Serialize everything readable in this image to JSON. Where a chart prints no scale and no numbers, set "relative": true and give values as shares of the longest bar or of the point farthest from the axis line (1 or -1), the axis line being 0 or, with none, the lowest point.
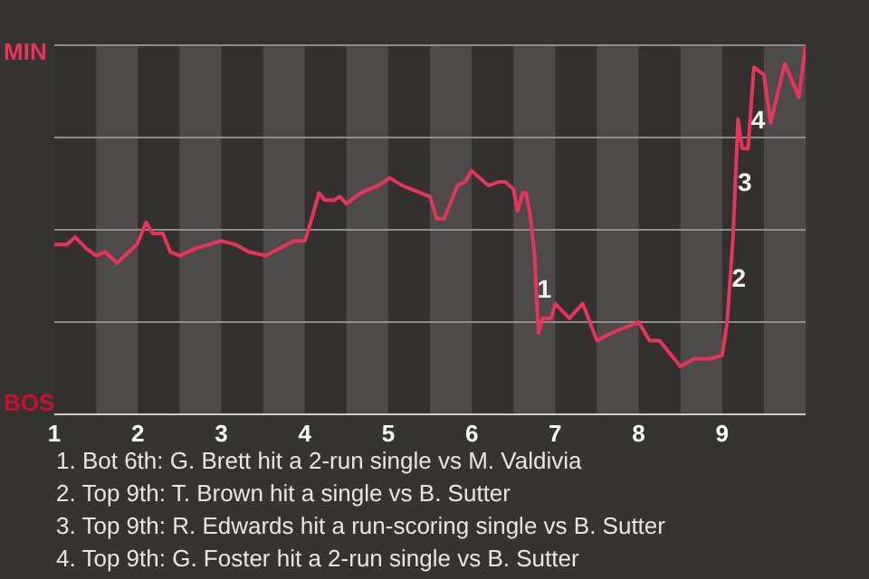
{
  "chart_data": {
    "type": "line",
    "relative": true,
    "grid": "y",
    "legend": false,
    "marker": "none",
    "line_style": "solid",
    "xlim": [
      1,
      10
    ],
    "xticks": [
      1,
      2,
      3,
      4,
      5,
      6,
      7,
      8,
      9
    ],
    "x": [
      1,
      1.15,
      1.25,
      1.38,
      1.5,
      1.61,
      1.75,
      1.99,
      2.1,
      2.18,
      2.3,
      2.39,
      2.5,
      2.7,
      3,
      3.17,
      3.33,
      3.53,
      3.7,
      3.87,
      4,
      4.07,
      4.17,
      4.24,
      4.35,
      4.42,
      4.5,
      4.67,
      4.88,
      5.02,
      5.17,
      5.5,
      5.58,
      5.67,
      5.83,
      5.92,
      6,
      6.1,
      6.2,
      6.33,
      6.4,
      6.5,
      6.55,
      6.61,
      6.65,
      6.7,
      6.75,
      6.8,
      6.85,
      6.95,
      7,
      7.17,
      7.33,
      7.5,
      7.67,
      8,
      8.13,
      8.25,
      8.5,
      8.66,
      8.84,
      9,
      9.06,
      9.13,
      9.19,
      9.24,
      9.31,
      9.38,
      9.5,
      9.58,
      9.75,
      9.92,
      10
    ],
    "series": [
      {
        "color": "#e8335a",
        "values": [
          0.46,
          0.46,
          0.48,
          0.45,
          0.43,
          0.44,
          0.41,
          0.46,
          0.52,
          0.49,
          0.49,
          0.44,
          0.43,
          0.45,
          0.47,
          0.46,
          0.44,
          0.43,
          0.45,
          0.47,
          0.47,
          0.52,
          0.6,
          0.58,
          0.58,
          0.59,
          0.57,
          0.6,
          0.62,
          0.64,
          0.62,
          0.59,
          0.53,
          0.53,
          0.62,
          0.63,
          0.66,
          0.64,
          0.62,
          0.63,
          0.63,
          0.61,
          0.55,
          0.6,
          0.6,
          0.54,
          0.44,
          0.22,
          0.26,
          0.26,
          0.3,
          0.26,
          0.3,
          0.2,
          0.22,
          0.25,
          0.2,
          0.2,
          0.13,
          0.15,
          0.15,
          0.16,
          0.25,
          0.48,
          0.8,
          0.72,
          0.72,
          0.94,
          0.92,
          0.79,
          0.95,
          0.86,
          1
        ]
      }
    ],
    "bands": [
      {
        "axis": "x",
        "from": 1.5,
        "to": 2,
        "color": "#4d4b49"
      },
      {
        "axis": "x",
        "from": 2.5,
        "to": 3,
        "color": "#4d4b49"
      },
      {
        "axis": "x",
        "from": 3.5,
        "to": 4,
        "color": "#4d4b49"
      },
      {
        "axis": "x",
        "from": 4.5,
        "to": 5,
        "color": "#4d4b49"
      },
      {
        "axis": "x",
        "from": 5.5,
        "to": 6,
        "color": "#4d4b49"
      },
      {
        "axis": "x",
        "from": 6.5,
        "to": 7,
        "color": "#4d4b49"
      },
      {
        "axis": "x",
        "from": 7.5,
        "to": 8,
        "color": "#4d4b49"
      },
      {
        "axis": "x",
        "from": 8.5,
        "to": 9,
        "color": "#4d4b49"
      },
      {
        "axis": "x",
        "from": 9.5,
        "to": 10,
        "color": "#4d4b49"
      }
    ],
    "annotations": [
      "MIN",
      "BOS",
      {
        "text": "1",
        "x": 6.87,
        "y": 0.34
      },
      {
        "text": "2",
        "x": 9.2,
        "y": 0.37
      },
      {
        "text": "3",
        "x": 9.27,
        "y": 0.63
      },
      {
        "text": "4",
        "x": 9.43,
        "y": 0.8
      },
      "1. Bot 6th: G. Brett hit a 2-run single vs M. Valdivia",
      "2. Top 9th: T. Brown hit a single vs B. Sutter",
      "3. Top 9th: R. Edwards hit a run-scoring single vs B. Sutter",
      "4. Top 9th: G. Foster hit a 2-run single vs B. Sutter"
    ]
  }
}
